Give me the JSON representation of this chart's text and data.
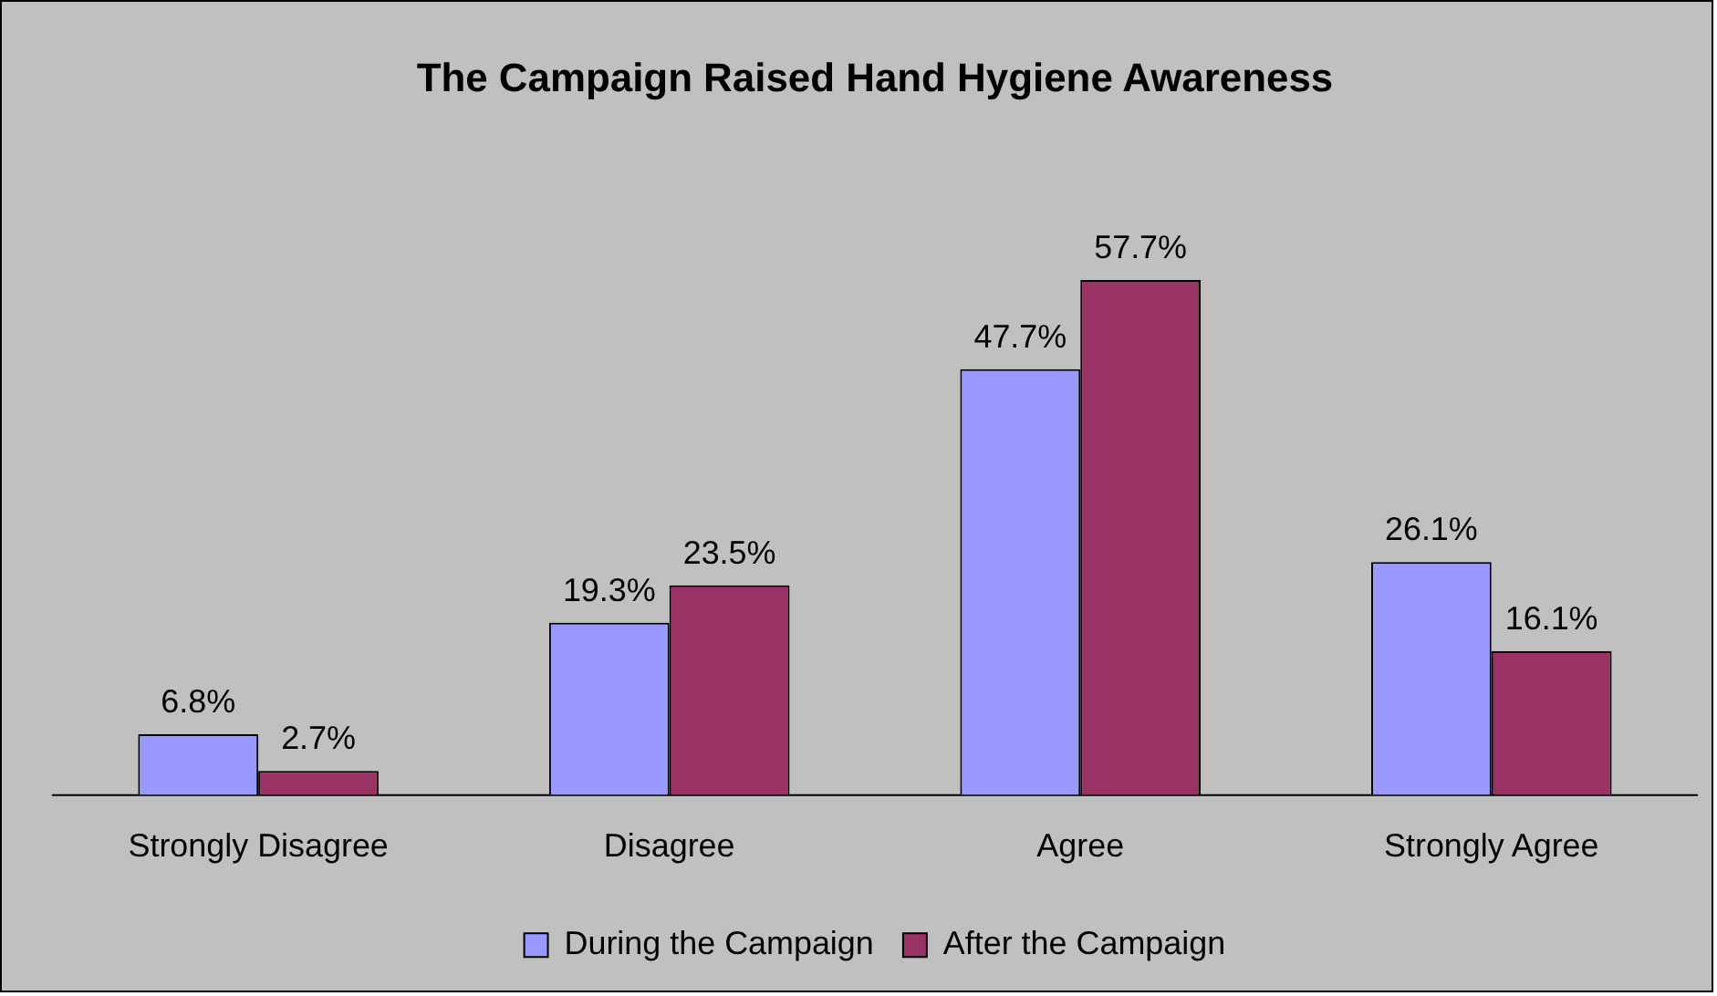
{
  "chart_data": {
    "type": "bar",
    "title": "The Campaign Raised Hand Hygiene Awareness",
    "categories": [
      "Strongly Disagree",
      "Disagree",
      "Agree",
      "Strongly Agree"
    ],
    "series": [
      {
        "name": "During the Campaign",
        "color": "#9999ff",
        "values": [
          6.8,
          19.3,
          47.7,
          26.1
        ],
        "value_labels": [
          "6.8%",
          "19.3%",
          "47.7%",
          "26.1%"
        ]
      },
      {
        "name": "After the Campaign",
        "color": "#993366",
        "values": [
          2.7,
          23.5,
          57.7,
          16.1
        ],
        "value_labels": [
          "2.7%",
          "23.5%",
          "57.7%",
          "16.1%"
        ]
      }
    ],
    "legend": "bottom",
    "grid": false
  }
}
